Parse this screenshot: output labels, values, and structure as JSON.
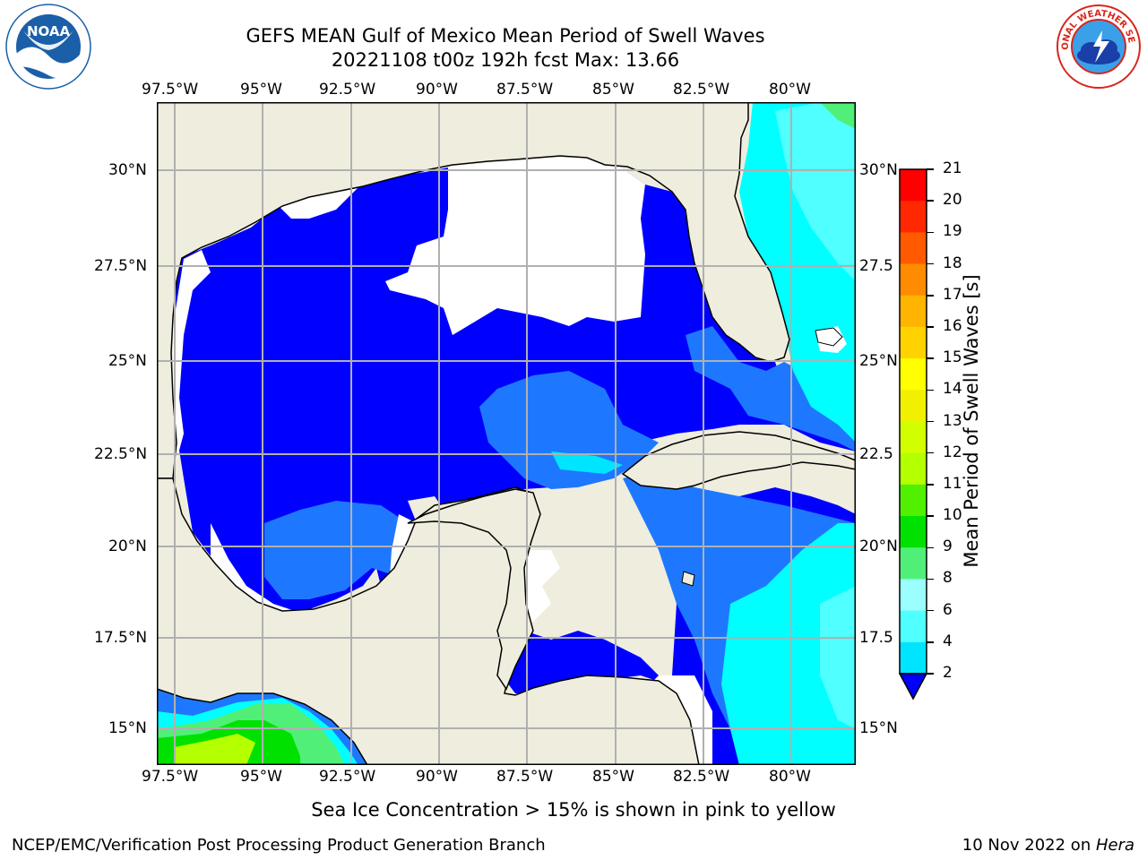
{
  "header": {
    "title": "GEFS MEAN Gulf of Mexico Mean Period of Swell Waves",
    "subtitle": "20221108 t00z 192h fcst   Max: 13.66"
  },
  "logos": {
    "left": {
      "text": "NOAA",
      "ring_text": "NATIONAL OCEANIC AND ATMOSPHERIC ADMINISTRATION · U.S. DEPARTMENT OF COMMERCE",
      "color": "#1a5fa8"
    },
    "right": {
      "ring_text": "NATIONAL WEATHER SERVICE",
      "color": "#d9261c"
    }
  },
  "map": {
    "lon_labels": [
      "97.5°W",
      "95°W",
      "92.5°W",
      "90°W",
      "87.5°W",
      "85°W",
      "82.5°W",
      "80°W"
    ],
    "lat_labels_left": [
      "30°N",
      "27.5°N",
      "25°N",
      "22.5°N",
      "20°N",
      "17.5°N",
      "15°N"
    ],
    "lat_labels_right": [
      "30°N",
      "27.5",
      "25°N",
      "22.5",
      "20°N",
      "17.5",
      "15°N"
    ],
    "colors": {
      "land": "#efedde",
      "ocean_low": "#0000ff",
      "ocean_mid": "#1e78ff",
      "ocean_cyan": "#00ffff",
      "grid": "#b0b0b0"
    }
  },
  "colorbar": {
    "label": "Mean Period of Swell Waves [s]",
    "ticks": [
      "2",
      "4",
      "6",
      "8",
      "9",
      "10",
      "11",
      "12",
      "13",
      "14",
      "15",
      "16",
      "17",
      "18",
      "19",
      "20",
      "21"
    ],
    "colors": [
      "#0000ff",
      "#1e78ff",
      "#00e5ff",
      "#50ffff",
      "#9bffff",
      "#50f078",
      "#00e100",
      "#50f000",
      "#b4ff00",
      "#d2ff00",
      "#f0f000",
      "#ffff00",
      "#ffd200",
      "#ffb400",
      "#ff8c00",
      "#ff5a00",
      "#ff2800",
      "#ff0000"
    ]
  },
  "note": "Sea Ice Concentration > 15% is shown in pink to yellow",
  "footer": {
    "left": "NCEP/EMC/Verification Post Processing Product Generation Branch",
    "right_date": "10 Nov 2022 on ",
    "right_host": "Hera"
  }
}
